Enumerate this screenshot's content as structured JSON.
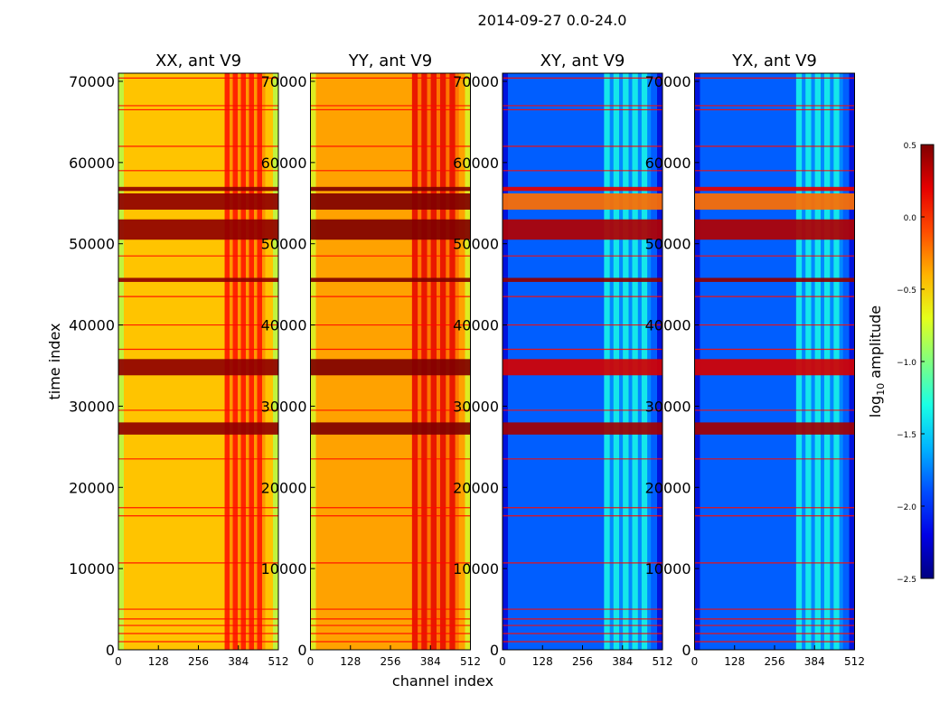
{
  "chart_data": {
    "type": "heatmap",
    "suptitle": "2014-09-27 0.0-24.0",
    "xlabel": "channel index",
    "ylabel": "time index",
    "xlim": [
      0,
      512
    ],
    "ylim": [
      0,
      71000
    ],
    "xticks": [
      0,
      128,
      256,
      384,
      512
    ],
    "yticks": [
      0,
      10000,
      20000,
      30000,
      40000,
      50000,
      60000,
      70000
    ],
    "colormap": "jet",
    "colorbar": {
      "label_prefix": "log",
      "label_sub": "10",
      "label_suffix": " amplitude",
      "range": [
        -2.5,
        0.5
      ],
      "ticks": [
        0.5,
        0.0,
        -0.5,
        -1.0,
        -1.5,
        -2.0,
        -2.5
      ],
      "tick_labels": [
        "0.5",
        "0.0",
        "−0.5",
        "−1.0",
        "−1.5",
        "−2.0",
        "−2.5"
      ]
    },
    "panels": [
      {
        "title": "XX, ant V9",
        "baseline": -0.45,
        "rfi_band": [
          340,
          470
        ]
      },
      {
        "title": "YY, ant V9",
        "baseline": -0.35,
        "rfi_band": [
          325,
          475
        ]
      },
      {
        "title": "XY, ant V9",
        "baseline": -1.85,
        "rfi_band": [
          325,
          475
        ]
      },
      {
        "title": "YX, ant V9",
        "baseline": -1.85,
        "rfi_band": [
          325,
          475
        ]
      }
    ],
    "bright_time_bands": [
      {
        "range": [
          50500,
          53000
        ],
        "level": 0.35
      },
      {
        "range": [
          26500,
          28000
        ],
        "level": 0.4
      },
      {
        "range": [
          33800,
          35800
        ],
        "level": 0.25
      },
      {
        "range": [
          45300,
          45800
        ],
        "level": 0.45
      },
      {
        "range": [
          54200,
          56200
        ],
        "level": -0.2
      },
      {
        "range": [
          56500,
          57000
        ],
        "level": 0.2
      }
    ],
    "flag_lines": [
      1000,
      2000,
      3000,
      3800,
      5000,
      10700,
      16500,
      17500,
      23500,
      29500,
      37000,
      40000,
      43500,
      48500,
      59000,
      62000,
      66500,
      67000,
      70400
    ]
  }
}
